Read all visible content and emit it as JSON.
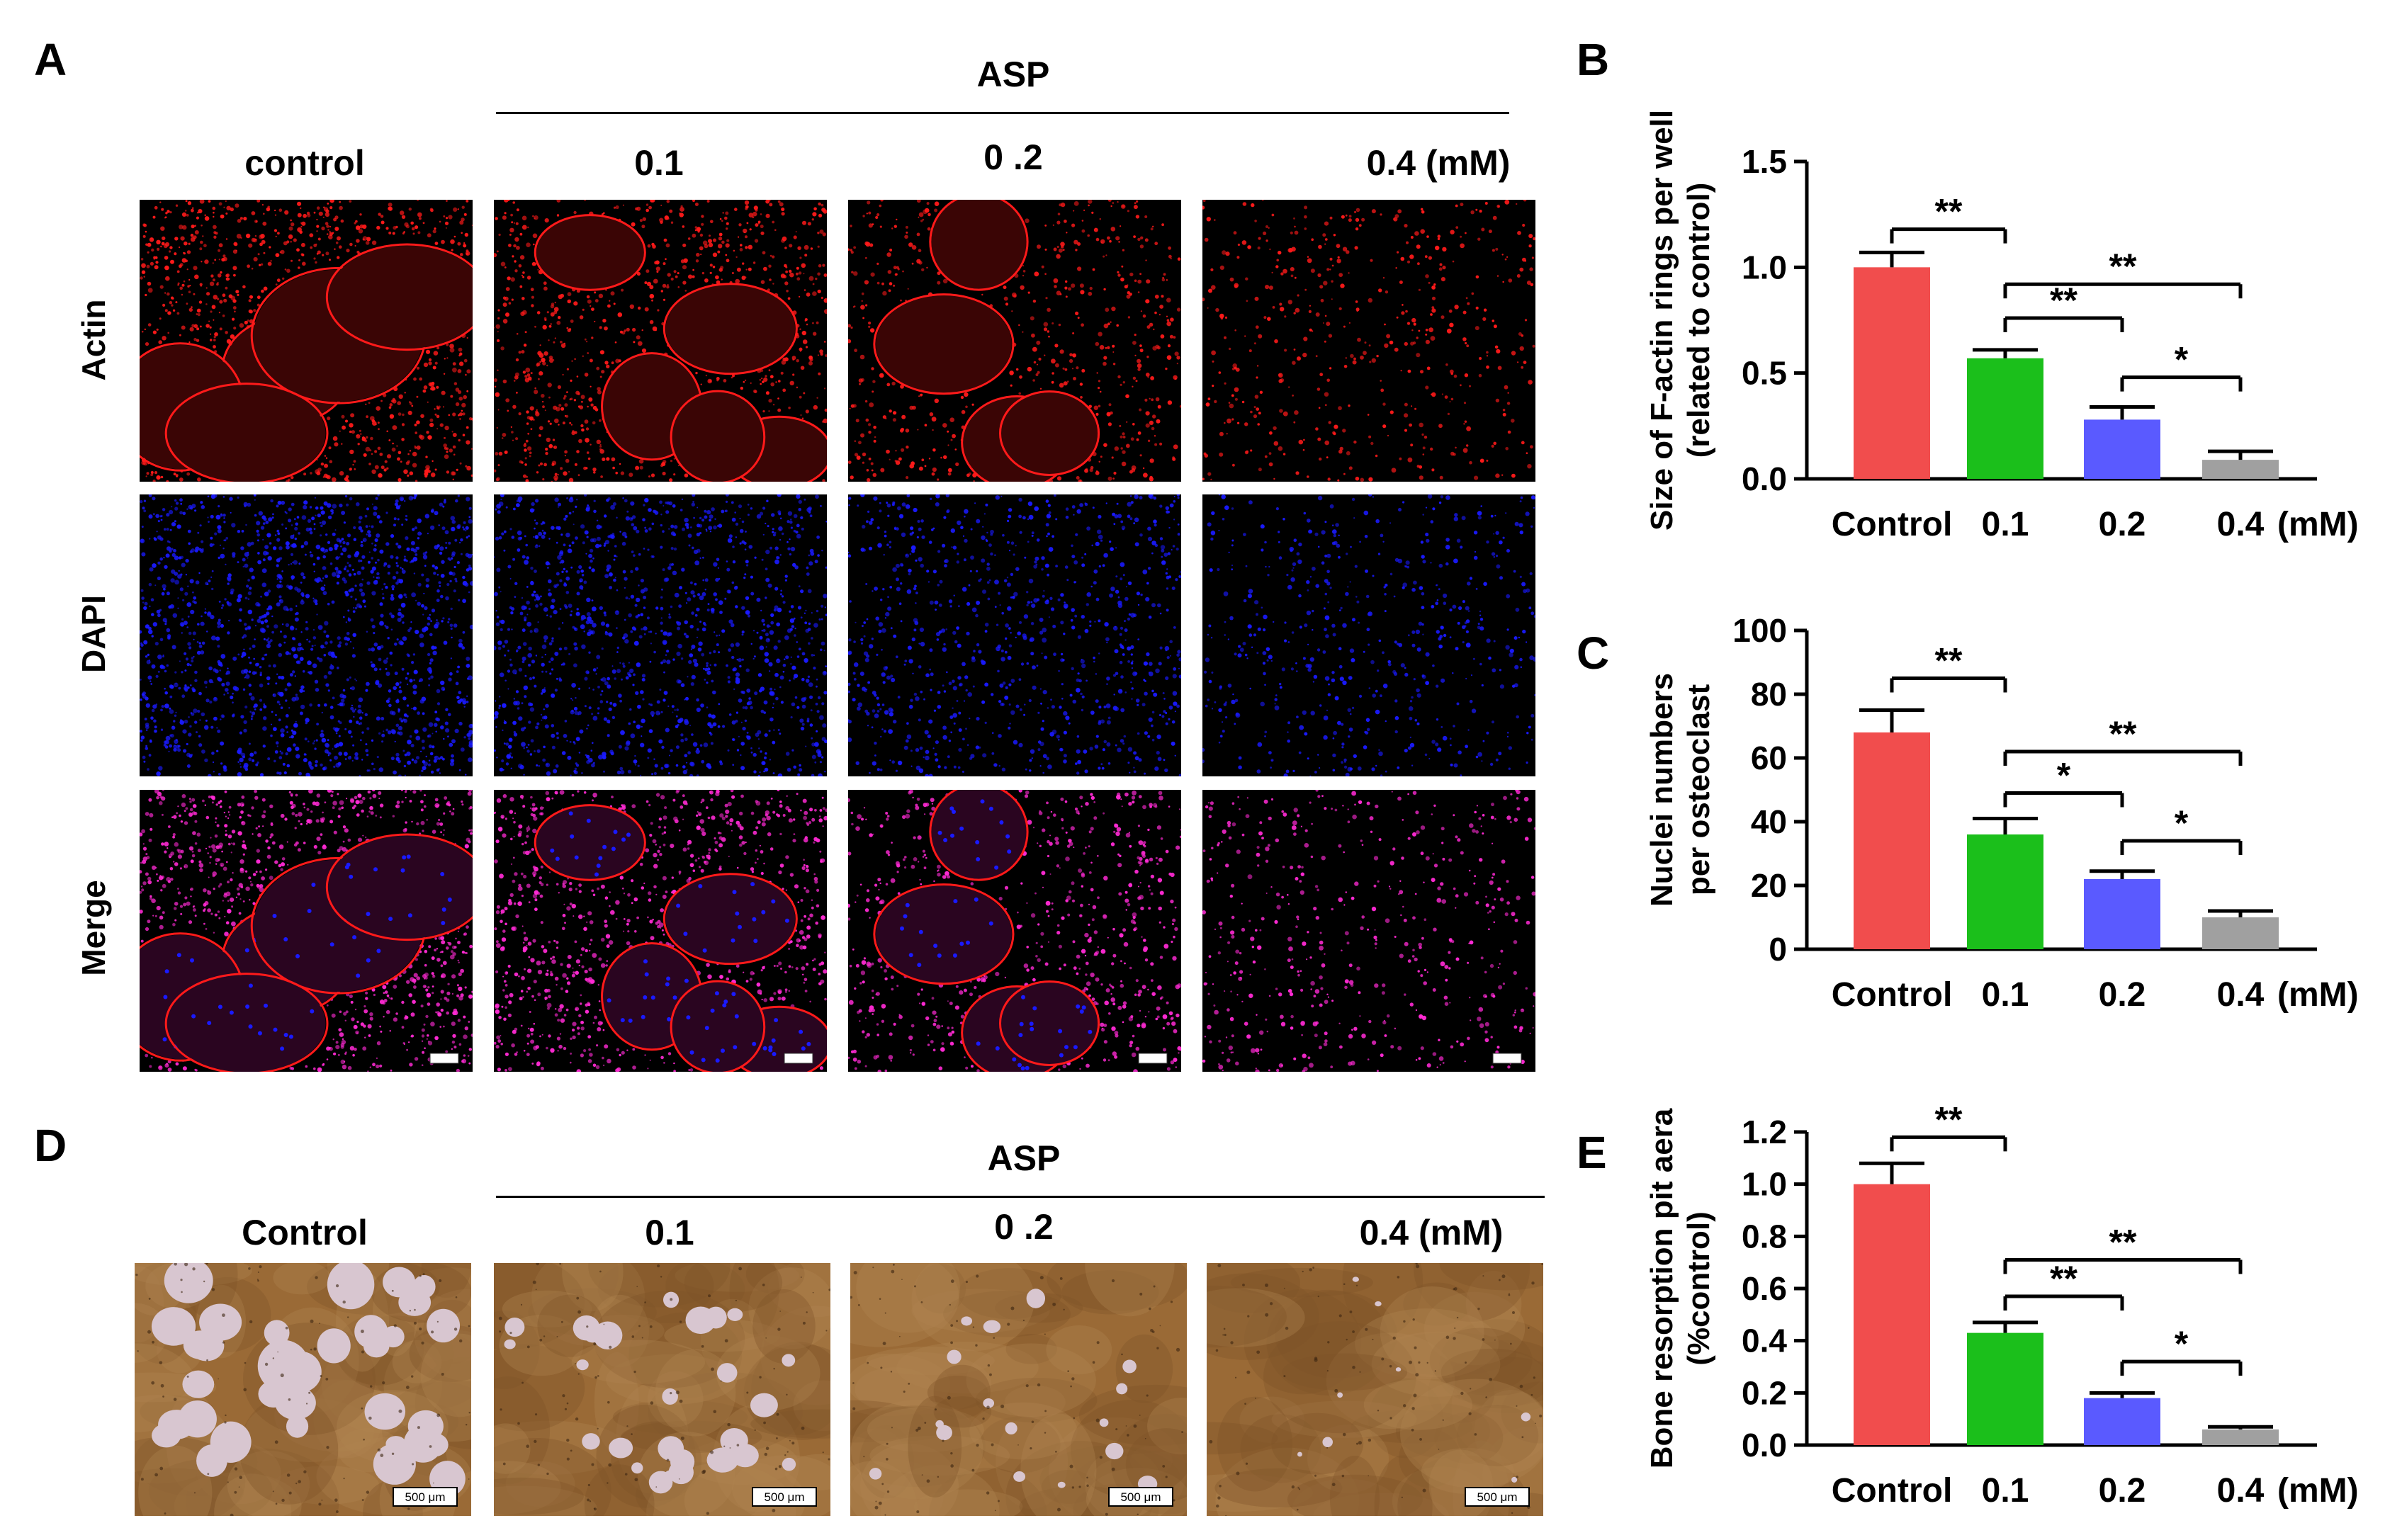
{
  "figure": {
    "panels": {
      "A": {
        "letter": "A",
        "group_label": "ASP",
        "columns": [
          "control",
          "0.1",
          "0 .2",
          "0.4 (mM)"
        ],
        "rows": [
          "Actin",
          "DAPI",
          "Merge"
        ],
        "colors": {
          "actin": "#ff1a1a",
          "dapi": "#1a1aff",
          "merge": "#ff2ad4",
          "background": "#000000"
        }
      },
      "D": {
        "letter": "D",
        "group_label": "ASP",
        "columns": [
          "Control",
          "0.1",
          "0 .2",
          "0.4 (mM)"
        ],
        "scalebar": "500 μm",
        "colors": {
          "substrate": "#9a6a36",
          "pit": "#d8c6d0"
        }
      },
      "B": {
        "letter": "B"
      },
      "C": {
        "letter": "C"
      },
      "E": {
        "letter": "E"
      }
    }
  },
  "chart_data": [
    {
      "panel": "B",
      "type": "bar",
      "categories": [
        "Control",
        "0.1",
        "0.2",
        "0.4"
      ],
      "unit_label": "(mM)",
      "values": [
        1.0,
        0.57,
        0.28,
        0.09
      ],
      "errors": [
        0.07,
        0.04,
        0.06,
        0.04
      ],
      "colors": [
        "#f14d4d",
        "#1bbf1b",
        "#5a5aff",
        "#a0a0a0"
      ],
      "ylabel_line1": "Size of F-actin rings per well",
      "ylabel_line2": "(related to control)",
      "ylim": [
        0,
        1.5
      ],
      "yticks": [
        "0.0",
        "0.5",
        "1.0",
        "1.5"
      ],
      "ytick_values": [
        0,
        0.5,
        1.0,
        1.5
      ],
      "brackets": [
        {
          "from": 0,
          "to": 1,
          "y": 1.18,
          "label": "**"
        },
        {
          "from": 1,
          "to": 2,
          "y": 0.76,
          "label": "**"
        },
        {
          "from": 1,
          "to": 3,
          "y": 0.92,
          "label": "**"
        },
        {
          "from": 2,
          "to": 3,
          "y": 0.48,
          "label": "*"
        }
      ]
    },
    {
      "panel": "C",
      "type": "bar",
      "categories": [
        "Control",
        "0.1",
        "0.2",
        "0.4"
      ],
      "unit_label": "(mM)",
      "values": [
        68,
        36,
        22,
        10
      ],
      "errors": [
        7,
        5,
        2.5,
        2
      ],
      "colors": [
        "#f14d4d",
        "#1bbf1b",
        "#5a5aff",
        "#a0a0a0"
      ],
      "ylabel_line1": "Nuclei numbers",
      "ylabel_line2": "per osteoclast",
      "ylim": [
        0,
        100
      ],
      "yticks": [
        "0",
        "20",
        "40",
        "60",
        "80",
        "100"
      ],
      "ytick_values": [
        0,
        20,
        40,
        60,
        80,
        100
      ],
      "brackets": [
        {
          "from": 0,
          "to": 1,
          "y": 85,
          "label": "**"
        },
        {
          "from": 1,
          "to": 2,
          "y": 49,
          "label": "*"
        },
        {
          "from": 1,
          "to": 3,
          "y": 62,
          "label": "**"
        },
        {
          "from": 2,
          "to": 3,
          "y": 34,
          "label": "*"
        }
      ]
    },
    {
      "panel": "E",
      "type": "bar",
      "categories": [
        "Control",
        "0.1",
        "0.2",
        "0.4"
      ],
      "unit_label": "(mM)",
      "values": [
        1.0,
        0.43,
        0.18,
        0.06
      ],
      "errors": [
        0.08,
        0.04,
        0.02,
        0.01
      ],
      "colors": [
        "#f14d4d",
        "#1bbf1b",
        "#5a5aff",
        "#a0a0a0"
      ],
      "ylabel_line1": "Bone resorption pit aera",
      "ylabel_line2": "(%control)",
      "ylim": [
        0,
        1.2
      ],
      "yticks": [
        "0.0",
        "0.2",
        "0.4",
        "0.6",
        "0.8",
        "1.0",
        "1.2"
      ],
      "ytick_values": [
        0,
        0.2,
        0.4,
        0.6,
        0.8,
        1.0,
        1.2
      ],
      "brackets": [
        {
          "from": 0,
          "to": 1,
          "y": 1.18,
          "label": "**"
        },
        {
          "from": 1,
          "to": 2,
          "y": 0.57,
          "label": "**"
        },
        {
          "from": 1,
          "to": 3,
          "y": 0.71,
          "label": "**"
        },
        {
          "from": 2,
          "to": 3,
          "y": 0.32,
          "label": "*"
        }
      ]
    }
  ]
}
